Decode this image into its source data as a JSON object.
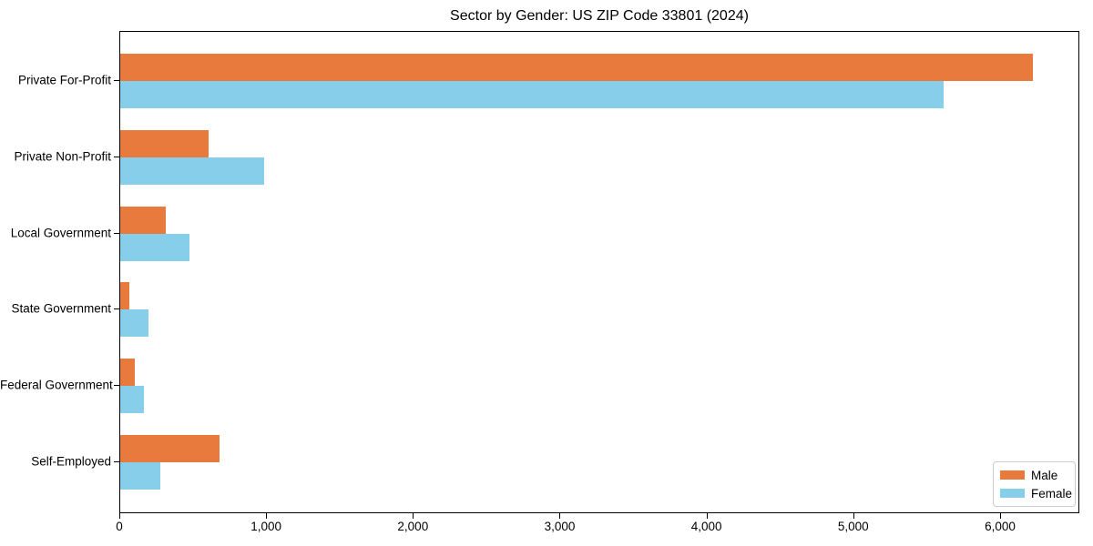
{
  "chart_data": {
    "type": "bar",
    "orientation": "horizontal",
    "title": "Sector by Gender: US ZIP Code 33801 (2024)",
    "categories": [
      "Private For-Profit",
      "Private Non-Profit",
      "Local Government",
      "State Government",
      "Federal Government",
      "Self-Employed"
    ],
    "series": [
      {
        "name": "Male",
        "color": "#E87A3D",
        "values": [
          6230,
          600,
          310,
          60,
          100,
          680
        ]
      },
      {
        "name": "Female",
        "color": "#87CEEB",
        "values": [
          5620,
          980,
          475,
          190,
          160,
          275
        ]
      }
    ],
    "xlabel": "",
    "ylabel": "",
    "xlim": [
      0,
      6540
    ],
    "xticks": [
      {
        "value": 0,
        "label": "0"
      },
      {
        "value": 1000,
        "label": "1,000"
      },
      {
        "value": 2000,
        "label": "2,000"
      },
      {
        "value": 3000,
        "label": "3,000"
      },
      {
        "value": 4000,
        "label": "4,000"
      },
      {
        "value": 5000,
        "label": "5,000"
      },
      {
        "value": 6000,
        "label": "6,000"
      }
    ],
    "grid": false,
    "legend": {
      "position": "lower right",
      "entries": [
        {
          "label": "Male",
          "color": "#E87A3D"
        },
        {
          "label": "Female",
          "color": "#87CEEB"
        }
      ]
    }
  }
}
